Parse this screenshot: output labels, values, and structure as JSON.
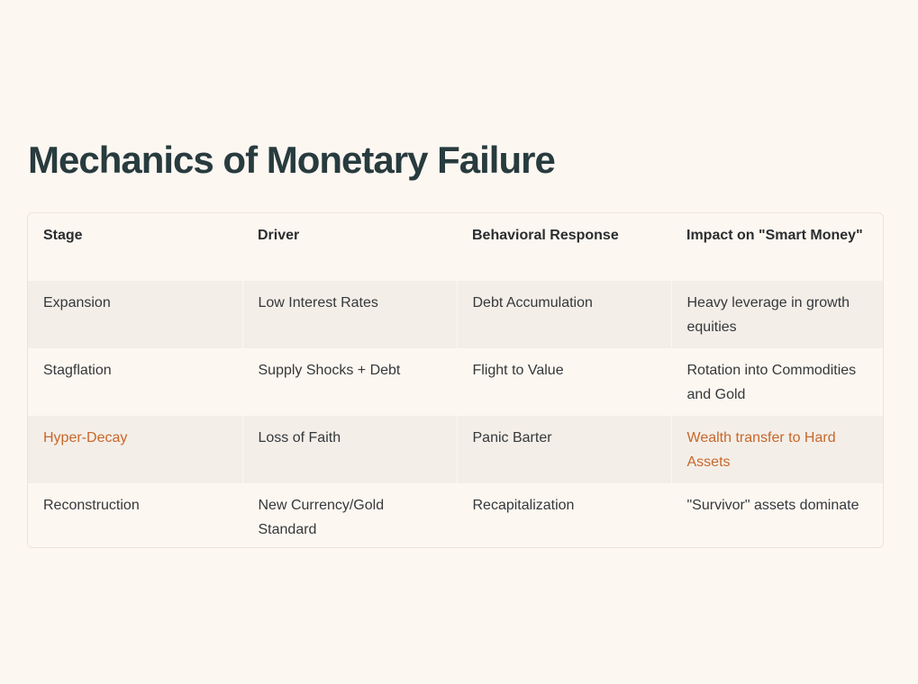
{
  "page": {
    "title": "Mechanics of Monetary Failure"
  },
  "colors": {
    "background": "#fdf7f1",
    "title": "#283b3e",
    "row_stripe": "#f4eee8",
    "accent": "#c8672a"
  },
  "table": {
    "headers": [
      "Stage",
      "Driver",
      "Behavioral Response",
      "Impact on \"Smart Money\""
    ],
    "rows": [
      {
        "stage": "Expansion",
        "driver": "Low Interest Rates",
        "response": "Debt Accumulation",
        "impact": "Heavy leverage in growth equities",
        "highlight": false
      },
      {
        "stage": "Stagflation",
        "driver": "Supply Shocks + Debt",
        "response": "Flight to Value",
        "impact": "Rotation into Commodities and Gold",
        "highlight": false
      },
      {
        "stage": "Hyper-Decay",
        "driver": "Loss of Faith",
        "response": "Panic Barter",
        "impact": "Wealth transfer to Hard Assets",
        "highlight": true
      },
      {
        "stage": "Reconstruction",
        "driver": "New Currency/Gold Standard",
        "response": "Recapitalization",
        "impact": "\"Survivor\" assets dominate",
        "highlight": false
      }
    ]
  }
}
